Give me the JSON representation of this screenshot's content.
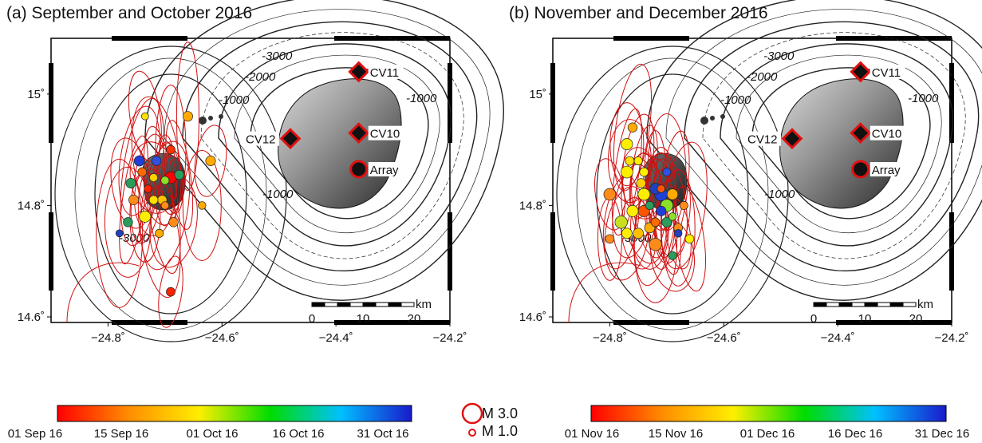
{
  "panels": [
    {
      "title": "(a) September and October 2016",
      "colorbar_labels": [
        "01 Sep 16",
        "15 Sep 16",
        "01 Oct 16",
        "16 Oct 16",
        "31 Oct 16"
      ],
      "events": [
        {
          "lon": -24.69,
          "lat": 14.85,
          "mag": 1.6,
          "color": "#ff0000"
        },
        {
          "lon": -24.735,
          "lat": 14.78,
          "mag": 1.5,
          "color": "#ffee00"
        },
        {
          "lon": -24.745,
          "lat": 14.88,
          "mag": 1.3,
          "color": "#1f3fd8"
        },
        {
          "lon": -24.715,
          "lat": 14.88,
          "mag": 1.1,
          "color": "#3050e0"
        },
        {
          "lon": -24.66,
          "lat": 14.96,
          "mag": 1.2,
          "color": "#ffaa00"
        },
        {
          "lon": -24.62,
          "lat": 14.88,
          "mag": 1.2,
          "color": "#ffaa00"
        },
        {
          "lon": -24.76,
          "lat": 14.84,
          "mag": 1.2,
          "color": "#2a9d5c"
        },
        {
          "lon": -24.765,
          "lat": 14.77,
          "mag": 1.1,
          "color": "#2a9d5c"
        },
        {
          "lon": -24.755,
          "lat": 14.81,
          "mag": 1.2,
          "color": "#ff8c1a"
        },
        {
          "lon": -24.705,
          "lat": 14.81,
          "mag": 1.1,
          "color": "#ffc000"
        },
        {
          "lon": -24.72,
          "lat": 14.81,
          "mag": 1.0,
          "color": "#ffe000"
        },
        {
          "lon": -24.685,
          "lat": 14.77,
          "mag": 1.1,
          "color": "#ff8c1a"
        },
        {
          "lon": -24.675,
          "lat": 14.855,
          "mag": 1.1,
          "color": "#2a9d5c"
        },
        {
          "lon": -24.69,
          "lat": 14.9,
          "mag": 1.0,
          "color": "#ff3300"
        },
        {
          "lon": -24.74,
          "lat": 14.86,
          "mag": 1.0,
          "color": "#ff6a00"
        },
        {
          "lon": -24.72,
          "lat": 14.85,
          "mag": 0.9,
          "color": "#ffd000"
        },
        {
          "lon": -24.7,
          "lat": 14.845,
          "mag": 0.9,
          "color": "#8ce02a"
        },
        {
          "lon": -24.73,
          "lat": 14.83,
          "mag": 0.8,
          "color": "#ff2000"
        },
        {
          "lon": -24.71,
          "lat": 14.75,
          "mag": 0.9,
          "color": "#ffaa00"
        },
        {
          "lon": -24.78,
          "lat": 14.75,
          "mag": 0.7,
          "color": "#2040c0"
        },
        {
          "lon": -24.69,
          "lat": 14.645,
          "mag": 1.0,
          "color": "#ff2200"
        },
        {
          "lon": -24.735,
          "lat": 14.96,
          "mag": 0.7,
          "color": "#ffe000"
        },
        {
          "lon": -24.635,
          "lat": 14.8,
          "mag": 0.8,
          "color": "#ffaa00"
        },
        {
          "lon": -24.7,
          "lat": 14.8,
          "mag": 0.8,
          "color": "#ff8c1a"
        }
      ]
    },
    {
      "title": "(b) November and December 2016",
      "colorbar_labels": [
        "01 Nov 16",
        "15 Nov 16",
        "01 Dec 16",
        "16 Dec 16",
        "31 Dec 16"
      ],
      "events": [
        {
          "lon": -24.71,
          "lat": 14.82,
          "mag": 1.8,
          "color": "#1f3fd8"
        },
        {
          "lon": -24.74,
          "lat": 14.82,
          "mag": 1.6,
          "color": "#ffee00"
        },
        {
          "lon": -24.78,
          "lat": 14.77,
          "mag": 1.7,
          "color": "#c8e020"
        },
        {
          "lon": -24.7,
          "lat": 14.8,
          "mag": 1.7,
          "color": "#8ce02a"
        },
        {
          "lon": -24.72,
          "lat": 14.73,
          "mag": 1.7,
          "color": "#ff8c1a"
        },
        {
          "lon": -24.77,
          "lat": 14.86,
          "mag": 1.6,
          "color": "#ffee00"
        },
        {
          "lon": -24.8,
          "lat": 14.82,
          "mag": 1.6,
          "color": "#ff8c1a"
        },
        {
          "lon": -24.77,
          "lat": 14.91,
          "mag": 1.5,
          "color": "#ffee00"
        },
        {
          "lon": -24.76,
          "lat": 14.79,
          "mag": 1.5,
          "color": "#ffee00"
        },
        {
          "lon": -24.74,
          "lat": 14.79,
          "mag": 1.5,
          "color": "#ff5500"
        },
        {
          "lon": -24.72,
          "lat": 14.83,
          "mag": 1.4,
          "color": "#2040c0"
        },
        {
          "lon": -24.69,
          "lat": 14.82,
          "mag": 1.4,
          "color": "#ffaa00"
        },
        {
          "lon": -24.75,
          "lat": 14.75,
          "mag": 1.3,
          "color": "#ffc000"
        },
        {
          "lon": -24.73,
          "lat": 14.76,
          "mag": 1.3,
          "color": "#ffaa00"
        },
        {
          "lon": -24.77,
          "lat": 14.75,
          "mag": 1.3,
          "color": "#ffee00"
        },
        {
          "lon": -24.7,
          "lat": 14.77,
          "mag": 1.2,
          "color": "#2a9d5c"
        },
        {
          "lon": -24.71,
          "lat": 14.79,
          "mag": 1.2,
          "color": "#1f3fd8"
        },
        {
          "lon": -24.76,
          "lat": 14.94,
          "mag": 1.1,
          "color": "#ffaa00"
        },
        {
          "lon": -24.745,
          "lat": 14.84,
          "mag": 1.1,
          "color": "#ffd000"
        },
        {
          "lon": -24.765,
          "lat": 14.88,
          "mag": 1.0,
          "color": "#ffe000"
        },
        {
          "lon": -24.74,
          "lat": 14.86,
          "mag": 1.0,
          "color": "#ffee00"
        },
        {
          "lon": -24.66,
          "lat": 14.74,
          "mag": 1.0,
          "color": "#ffee00"
        },
        {
          "lon": -24.68,
          "lat": 14.76,
          "mag": 1.0,
          "color": "#ff8c1a"
        },
        {
          "lon": -24.72,
          "lat": 14.77,
          "mag": 1.0,
          "color": "#ff6a00"
        },
        {
          "lon": -24.69,
          "lat": 14.71,
          "mag": 0.9,
          "color": "#2a9d5c"
        },
        {
          "lon": -24.8,
          "lat": 14.74,
          "mag": 1.0,
          "color": "#ff8c1a"
        },
        {
          "lon": -24.75,
          "lat": 14.88,
          "mag": 0.9,
          "color": "#ffee00"
        },
        {
          "lon": -24.73,
          "lat": 14.8,
          "mag": 0.9,
          "color": "#2a9d5c"
        },
        {
          "lon": -24.7,
          "lat": 14.86,
          "mag": 0.9,
          "color": "#3050e0"
        },
        {
          "lon": -24.67,
          "lat": 14.8,
          "mag": 0.9,
          "color": "#ff8c1a"
        },
        {
          "lon": -24.68,
          "lat": 14.75,
          "mag": 0.8,
          "color": "#2040c0"
        },
        {
          "lon": -24.71,
          "lat": 14.83,
          "mag": 0.8,
          "color": "#ff5500"
        },
        {
          "lon": -24.69,
          "lat": 14.78,
          "mag": 0.8,
          "color": "#8ce02a"
        }
      ]
    }
  ],
  "axes": {
    "lon_ticks": [
      "−24.8˚",
      "−24.6˚",
      "−24.4˚",
      "−24.2˚"
    ],
    "lat_ticks": [
      "14.6˚",
      "14.8˚",
      "15˚"
    ]
  },
  "stations": [
    {
      "name": "CV11",
      "type": "diamond",
      "lon": -24.36,
      "lat": 15.04
    },
    {
      "name": "CV10",
      "type": "diamond",
      "lon": -24.36,
      "lat": 14.93
    },
    {
      "name": "CV12",
      "type": "diamond",
      "lon": -24.48,
      "lat": 14.92
    },
    {
      "name": "Array",
      "type": "circle",
      "lon": -24.36,
      "lat": 14.865
    }
  ],
  "contour_labels": [
    "-3000",
    "-2000",
    "-1000",
    "-1000",
    "-1000",
    "-3000"
  ],
  "scalebar": {
    "unit": "km",
    "labels": [
      "0",
      "10",
      "20"
    ]
  },
  "magnitude_legend": [
    {
      "label": "M 3.0",
      "mag": 3.0
    },
    {
      "label": "M 1.0",
      "mag": 1.0
    }
  ],
  "colorbar_stops": [
    "#ff0000",
    "#ff8c00",
    "#ffee00",
    "#00dd00",
    "#00c0ff",
    "#1a1acc"
  ],
  "colors": {
    "station_edge": "#e01010",
    "ellipse": "#d01010"
  }
}
